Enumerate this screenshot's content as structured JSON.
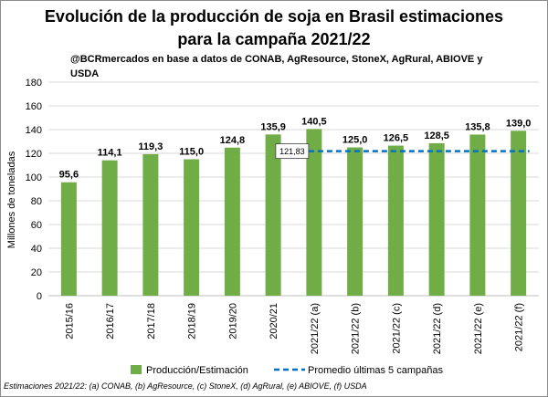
{
  "chart_data": {
    "type": "bar",
    "title": "Evolución de la producción de soja en Brasil estimaciones para la campaña 2021/22",
    "title_lines": [
      "Evolución de la producción de soja en Brasil estimaciones",
      "para la campaña 2021/22"
    ],
    "subtitle": "@BCRmercados en base a datos de CONAB, AgResource, StoneX, AgRural, ABIOVE y USDA",
    "xlabel": "",
    "ylabel": "Millones de toneladas",
    "ylim": [
      0,
      180
    ],
    "yticks": [
      0,
      20,
      40,
      60,
      80,
      100,
      120,
      140,
      160,
      180
    ],
    "grid": true,
    "categories": [
      "2015/16",
      "2016/17",
      "2017/18",
      "2018/19",
      "2019/20",
      "2020/21",
      "2021/22 (a)",
      "2021/22 (b)",
      "2021/22 (c)",
      "2021/22 (d)",
      "2021/22 (e)",
      "2021/22 (f)"
    ],
    "series": [
      {
        "name": "Producción/Estimación",
        "type": "bar",
        "color": "#70ad47",
        "values": [
          95.6,
          114.1,
          119.3,
          115.0,
          124.8,
          135.9,
          140.5,
          125.0,
          126.5,
          128.5,
          135.8,
          139.0
        ],
        "labels": [
          "95,6",
          "114,1",
          "119,3",
          "115,0",
          "124,8",
          "135,9",
          "140,5",
          "125,0",
          "126,5",
          "128,5",
          "135,8",
          "139,0"
        ]
      },
      {
        "name": "Promedio últimas 5 campañas",
        "type": "line",
        "style": "dashed",
        "color": "#0070c0",
        "value": 121.83,
        "label": "121,83",
        "start_category": "2021/22 (a)",
        "end_category": "2021/22 (f)"
      }
    ],
    "legend_position": "bottom",
    "footnote": "Estimaciones 2021/22:  (a) CONAB, (b) AgResource, (c) StoneX, (d) AgRural, (e) ABIOVE, (f) USDA"
  }
}
